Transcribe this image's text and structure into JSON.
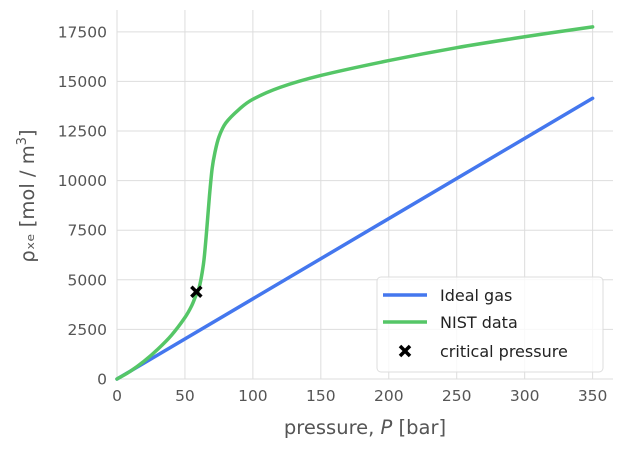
{
  "chart_data": {
    "type": "line",
    "xlabel_prefix": "pressure, ",
    "xlabel_var": "P",
    "xlabel_suffix": " [bar]",
    "ylabel_main": "ρₓₑ [mol / m",
    "ylabel_exp": "3",
    "ylabel_close": "]",
    "xlim": [
      0,
      365
    ],
    "ylim": [
      0,
      18600
    ],
    "xticks": [
      0,
      50,
      100,
      150,
      200,
      250,
      300,
      350
    ],
    "yticks": [
      0,
      2500,
      5000,
      7500,
      10000,
      12500,
      15000,
      17500
    ],
    "grid": true,
    "legend_position": "lower-right",
    "series": [
      {
        "name": "Ideal gas",
        "color": "#4477ee",
        "x": [
          0,
          350
        ],
        "y": [
          0,
          14150
        ]
      },
      {
        "name": "NIST data",
        "color": "#55c667",
        "x": [
          0,
          10,
          20,
          30,
          40,
          50,
          55,
          58,
          60,
          62,
          64,
          66,
          68,
          70,
          72,
          75,
          80,
          90,
          100,
          120,
          150,
          200,
          250,
          300,
          350
        ],
        "y": [
          0,
          400,
          900,
          1500,
          2200,
          3100,
          3700,
          4200,
          4500,
          5100,
          6000,
          7500,
          9200,
          10600,
          11400,
          12200,
          12900,
          13600,
          14100,
          14700,
          15300,
          16050,
          16700,
          17250,
          17750
        ]
      }
    ],
    "markers": [
      {
        "name": "critical pressure",
        "x": 58.4,
        "y": 4400,
        "symbol": "x",
        "color": "#000000"
      }
    ]
  }
}
